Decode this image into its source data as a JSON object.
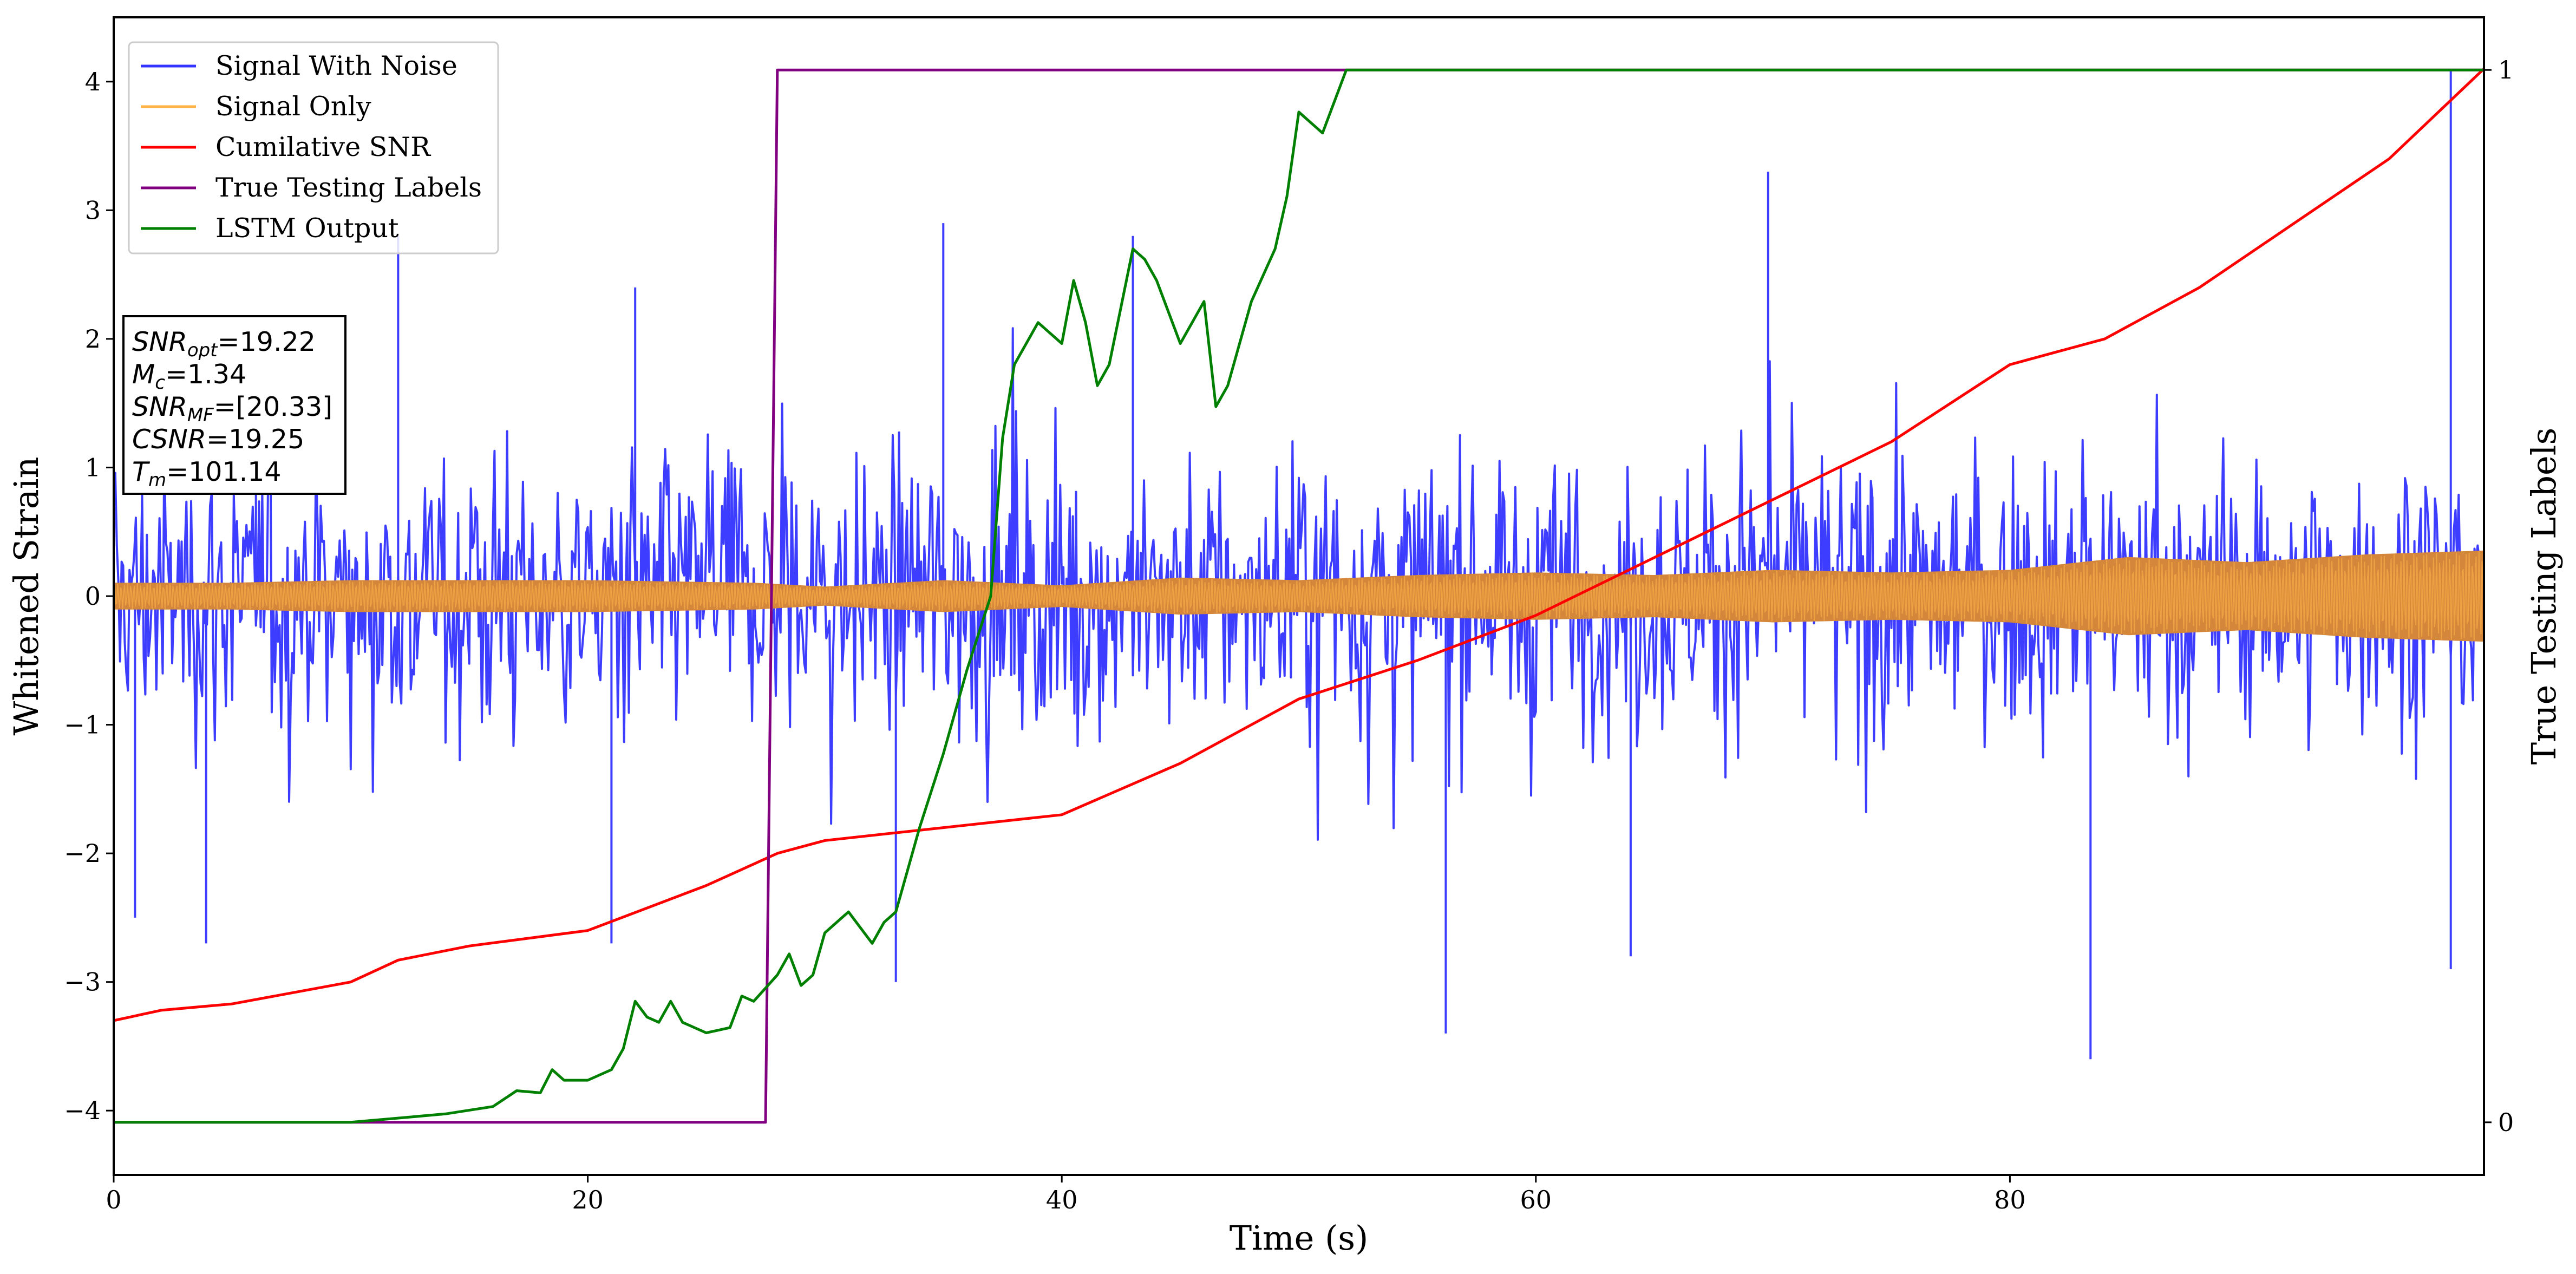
{
  "chart_data": {
    "type": "line",
    "xlabel": "Time (s)",
    "ylabel": "Whitened Strain",
    "y2label": "True Testing Labels",
    "xlim": [
      0,
      100
    ],
    "ylim": [
      -4.5,
      4.5
    ],
    "y2lim": [
      -0.05,
      1.05
    ],
    "xticks": [
      "0",
      "20",
      "40",
      "60",
      "80"
    ],
    "yticks": [
      "4",
      "3",
      "2",
      "1",
      "0",
      "−1",
      "−2",
      "−3",
      "−4"
    ],
    "y2ticks": [
      "1",
      "0"
    ],
    "legend_position": "top-left",
    "grid": false,
    "legend": [
      "Signal With Noise",
      "Signal Only",
      "Cumilative SNR",
      "True Testing Labels",
      "LSTM Output"
    ],
    "annotation": [
      {
        "var": "SNR",
        "sub": "opt",
        "value": "=19.22"
      },
      {
        "var": "M",
        "sub": "c",
        "value": "=1.34"
      },
      {
        "var": "SNR",
        "sub": "MF",
        "value": "=[20.33]"
      },
      {
        "var": "CSNR",
        "sub": "",
        "value": "=19.25"
      },
      {
        "var": "T",
        "sub": "m",
        "value": "=101.14"
      }
    ],
    "series": [
      {
        "name": "Signal With Noise",
        "axis": "left",
        "color": "#3333ff",
        "kind": "noise",
        "typical_range": [
          -1.5,
          1.5
        ],
        "peaks": [
          [
            0,
            1.3
          ],
          [
            6,
            1.2
          ],
          [
            12,
            2.8
          ],
          [
            22,
            2.4
          ],
          [
            35,
            2.9
          ],
          [
            43,
            2.8
          ],
          [
            69.8,
            3.3
          ],
          [
            98.6,
            4.1
          ]
        ],
        "troughs": [
          [
            0.9,
            -2.5
          ],
          [
            3.9,
            -2.7
          ],
          [
            21,
            -2.7
          ],
          [
            33,
            -3.0
          ],
          [
            56.2,
            -3.4
          ],
          [
            64,
            -2.8
          ],
          [
            83.4,
            -3.6
          ],
          [
            98.6,
            -2.9
          ]
        ]
      },
      {
        "name": "Signal Only",
        "axis": "left",
        "color": "#d4873a",
        "kind": "envelope",
        "envelope": [
          [
            0,
            0.1
          ],
          [
            5,
            0.1
          ],
          [
            10,
            0.12
          ],
          [
            20,
            0.12
          ],
          [
            27,
            0.1
          ],
          [
            30,
            0.07
          ],
          [
            35,
            0.12
          ],
          [
            40,
            0.08
          ],
          [
            45,
            0.14
          ],
          [
            50,
            0.12
          ],
          [
            55,
            0.16
          ],
          [
            60,
            0.18
          ],
          [
            65,
            0.16
          ],
          [
            70,
            0.2
          ],
          [
            75,
            0.18
          ],
          [
            80,
            0.2
          ],
          [
            85,
            0.3
          ],
          [
            90,
            0.26
          ],
          [
            95,
            0.32
          ],
          [
            100,
            0.35
          ]
        ]
      },
      {
        "name": "Cumilative SNR",
        "axis": "left",
        "color": "#ff0000",
        "points": [
          [
            0,
            -3.3
          ],
          [
            2,
            -3.22
          ],
          [
            5,
            -3.17
          ],
          [
            10,
            -3.0
          ],
          [
            12,
            -2.83
          ],
          [
            15,
            -2.72
          ],
          [
            20,
            -2.6
          ],
          [
            25,
            -2.25
          ],
          [
            28,
            -2.0
          ],
          [
            30,
            -1.9
          ],
          [
            35,
            -1.8
          ],
          [
            40,
            -1.7
          ],
          [
            45,
            -1.3
          ],
          [
            50,
            -0.8
          ],
          [
            55,
            -0.5
          ],
          [
            60,
            -0.15
          ],
          [
            65,
            0.3
          ],
          [
            70,
            0.75
          ],
          [
            75,
            1.2
          ],
          [
            80,
            1.8
          ],
          [
            84,
            2.0
          ],
          [
            88,
            2.4
          ],
          [
            92,
            2.9
          ],
          [
            96,
            3.4
          ],
          [
            100,
            4.1
          ]
        ]
      },
      {
        "name": "True Testing Labels",
        "axis": "right",
        "color": "#800080",
        "points": [
          [
            0,
            0
          ],
          [
            27.5,
            0
          ],
          [
            28,
            1
          ],
          [
            100,
            1
          ]
        ]
      },
      {
        "name": "LSTM Output",
        "axis": "right",
        "color": "#008000",
        "points": [
          [
            0,
            0
          ],
          [
            10,
            0
          ],
          [
            14,
            0.008
          ],
          [
            16,
            0.015
          ],
          [
            17,
            0.03
          ],
          [
            18,
            0.028
          ],
          [
            18.5,
            0.05
          ],
          [
            19,
            0.04
          ],
          [
            20,
            0.04
          ],
          [
            21,
            0.05
          ],
          [
            21.5,
            0.07
          ],
          [
            22,
            0.115
          ],
          [
            22.5,
            0.1
          ],
          [
            23,
            0.095
          ],
          [
            23.5,
            0.115
          ],
          [
            24,
            0.095
          ],
          [
            25,
            0.085
          ],
          [
            26,
            0.09
          ],
          [
            26.5,
            0.12
          ],
          [
            27,
            0.115
          ],
          [
            28,
            0.14
          ],
          [
            28.5,
            0.16
          ],
          [
            29,
            0.13
          ],
          [
            29.5,
            0.14
          ],
          [
            30,
            0.18
          ],
          [
            31,
            0.2
          ],
          [
            32,
            0.17
          ],
          [
            32.5,
            0.19
          ],
          [
            33,
            0.2
          ],
          [
            34,
            0.28
          ],
          [
            35,
            0.35
          ],
          [
            36,
            0.43
          ],
          [
            37,
            0.5
          ],
          [
            37.5,
            0.65
          ],
          [
            38,
            0.72
          ],
          [
            39,
            0.76
          ],
          [
            40,
            0.74
          ],
          [
            40.5,
            0.8
          ],
          [
            41,
            0.76
          ],
          [
            41.5,
            0.7
          ],
          [
            42,
            0.72
          ],
          [
            43,
            0.83
          ],
          [
            43.5,
            0.82
          ],
          [
            44,
            0.8
          ],
          [
            45,
            0.74
          ],
          [
            46,
            0.78
          ],
          [
            46.5,
            0.68
          ],
          [
            47,
            0.7
          ],
          [
            48,
            0.78
          ],
          [
            49,
            0.83
          ],
          [
            49.5,
            0.88
          ],
          [
            50,
            0.96
          ],
          [
            51,
            0.94
          ],
          [
            52,
            1.0
          ],
          [
            53,
            1.0
          ],
          [
            100,
            1.0
          ]
        ]
      }
    ]
  }
}
